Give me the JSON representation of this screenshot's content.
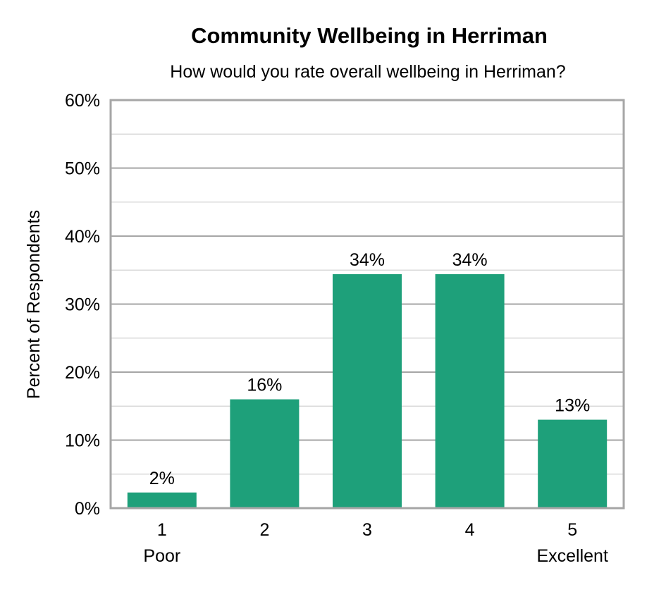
{
  "chart_data": {
    "type": "bar",
    "title": "Community Wellbeing in Herriman",
    "subtitle": "How would you rate overall wellbeing in Herriman?",
    "ylabel": "Percent of Respondents",
    "xlabel": "",
    "ylim": [
      0,
      60
    ],
    "y_ticks": [
      0,
      10,
      20,
      30,
      40,
      50,
      60
    ],
    "y_tick_labels": [
      "0%",
      "10%",
      "20%",
      "30%",
      "40%",
      "50%",
      "60%"
    ],
    "categories": [
      "1",
      "2",
      "3",
      "4",
      "5"
    ],
    "category_sublabels": [
      "Poor",
      "",
      "",
      "",
      "Excellent"
    ],
    "values": [
      2.3,
      16,
      34.4,
      34.4,
      13
    ],
    "data_labels": [
      "2%",
      "16%",
      "34%",
      "34%",
      "13%"
    ],
    "bar_color": "#1ea07a",
    "grid": true,
    "legend": false
  }
}
